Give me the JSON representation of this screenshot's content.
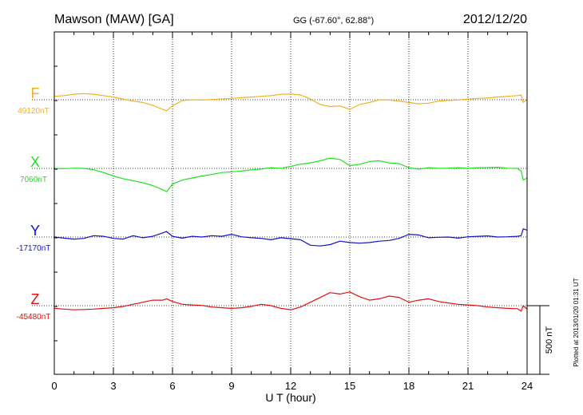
{
  "chart_data": {
    "type": "line",
    "title": "Mawson (MAW)  [GA]",
    "subtitle": "GG (-67.60°,  62.88°)",
    "date": "2012/12/20",
    "xlabel": "U T (hour)",
    "x_ticks": [
      "0",
      "3",
      "6",
      "9",
      "12",
      "15",
      "18",
      "21",
      "24"
    ],
    "xlim": [
      0,
      24
    ],
    "scale_label": "500 nT",
    "scale_nT": 500,
    "footer": "Plotted at 2013/01/20 01:31  UT",
    "grid": "dotted",
    "series": [
      {
        "name": "F",
        "baseline_label": "49120nT",
        "baseline_nT": 49120,
        "color": "#f0b020",
        "x": [
          0,
          0.5,
          1,
          1.5,
          2,
          2.5,
          3,
          3.5,
          4,
          4.5,
          5,
          5.5,
          5.7,
          6,
          6.5,
          7,
          7.5,
          8,
          8.5,
          9,
          9.5,
          10,
          10.5,
          11,
          11.5,
          12,
          12.5,
          13,
          13.5,
          14,
          14.5,
          15,
          15.5,
          16,
          16.5,
          17,
          17.5,
          18,
          18.5,
          19,
          19.5,
          20,
          20.5,
          21,
          21.5,
          22,
          22.5,
          23,
          23.5,
          23.7,
          23.8,
          24
        ],
        "y": [
          49145,
          49150,
          49160,
          49165,
          49160,
          49150,
          49140,
          49125,
          49110,
          49100,
          49080,
          49050,
          49040,
          49075,
          49115,
          49120,
          49118,
          49122,
          49125,
          49130,
          49135,
          49140,
          49145,
          49150,
          49160,
          49162,
          49155,
          49125,
          49085,
          49070,
          49075,
          49050,
          49085,
          49100,
          49120,
          49118,
          49110,
          49100,
          49090,
          49095,
          49110,
          49115,
          49118,
          49125,
          49130,
          49132,
          49140,
          49145,
          49150,
          49155,
          49100,
          49120
        ]
      },
      {
        "name": "X",
        "baseline_label": "7060nT",
        "baseline_nT": 7060,
        "color": "#20e020",
        "x": [
          0,
          0.5,
          1,
          1.5,
          2,
          2.5,
          3,
          3.5,
          4,
          4.5,
          5,
          5.5,
          5.7,
          6,
          6.5,
          7,
          7.5,
          8,
          8.5,
          9,
          9.5,
          10,
          10.5,
          11,
          11.5,
          12,
          12.5,
          13,
          13.5,
          14,
          14.5,
          15,
          15.5,
          16,
          16.5,
          17,
          17.5,
          18,
          18.5,
          19,
          19.5,
          20,
          20.5,
          21,
          21.5,
          22,
          22.5,
          23,
          23.5,
          23.7,
          23.8,
          24
        ],
        "y": [
          7060,
          7058,
          7062,
          7060,
          7050,
          7030,
          7005,
          6985,
          6970,
          6955,
          6935,
          6905,
          6890,
          6945,
          6975,
          6990,
          7005,
          7015,
          7030,
          7035,
          7040,
          7050,
          7055,
          7065,
          7060,
          7075,
          7090,
          7100,
          7115,
          7135,
          7125,
          7080,
          7090,
          7110,
          7115,
          7100,
          7095,
          7065,
          7055,
          7065,
          7060,
          7062,
          7065,
          7060,
          7065,
          7066,
          7068,
          7062,
          7060,
          7040,
          6975,
          6990
        ]
      },
      {
        "name": "Y",
        "baseline_label": "-17170nT",
        "baseline_nT": -17170,
        "color": "#1010d0",
        "x": [
          0,
          0.5,
          1,
          1.5,
          2,
          2.5,
          3,
          3.5,
          4,
          4.5,
          5,
          5.5,
          5.7,
          6,
          6.5,
          7,
          7.5,
          8,
          8.5,
          9,
          9.5,
          10,
          10.5,
          11,
          11.5,
          12,
          12.5,
          13,
          13.5,
          14,
          14.5,
          15,
          15.5,
          16,
          16.5,
          17,
          17.5,
          18,
          18.5,
          19,
          19.5,
          20,
          20.5,
          21,
          21.5,
          22,
          22.5,
          23,
          23.5,
          23.7,
          23.8,
          24
        ],
        "y": [
          -17170,
          -17178,
          -17185,
          -17180,
          -17160,
          -17165,
          -17180,
          -17185,
          -17160,
          -17175,
          -17165,
          -17140,
          -17130,
          -17165,
          -17178,
          -17165,
          -17170,
          -17160,
          -17165,
          -17150,
          -17168,
          -17175,
          -17180,
          -17190,
          -17175,
          -17182,
          -17190,
          -17230,
          -17235,
          -17225,
          -17200,
          -17210,
          -17215,
          -17210,
          -17200,
          -17195,
          -17180,
          -17150,
          -17155,
          -17175,
          -17172,
          -17170,
          -17178,
          -17168,
          -17165,
          -17162,
          -17170,
          -17168,
          -17165,
          -17160,
          -17110,
          -17120
        ]
      },
      {
        "name": "Z",
        "baseline_label": "-45480nT",
        "baseline_nT": -45480,
        "color": "#e01010",
        "x": [
          0,
          0.5,
          1,
          1.5,
          2,
          2.5,
          3,
          3.5,
          4,
          4.5,
          5,
          5.5,
          5.7,
          6,
          6.5,
          7,
          7.5,
          8,
          8.5,
          9,
          9.5,
          10,
          10.5,
          11,
          11.5,
          12,
          12.5,
          13,
          13.5,
          14,
          14.5,
          15,
          15.5,
          16,
          16.5,
          17,
          17.5,
          18,
          18.5,
          19,
          19.5,
          20,
          20.5,
          21,
          21.5,
          22,
          22.5,
          23,
          23.5,
          23.7,
          23.8,
          24
        ],
        "y": [
          -45500,
          -45505,
          -45510,
          -45508,
          -45505,
          -45500,
          -45495,
          -45485,
          -45470,
          -45455,
          -45440,
          -45440,
          -45430,
          -45450,
          -45470,
          -45475,
          -45478,
          -45490,
          -45495,
          -45500,
          -45495,
          -45485,
          -45470,
          -45480,
          -45500,
          -45510,
          -45490,
          -45455,
          -45420,
          -45385,
          -45395,
          -45380,
          -45415,
          -45440,
          -45430,
          -45410,
          -45420,
          -45455,
          -45440,
          -45430,
          -45450,
          -45460,
          -45470,
          -45475,
          -45480,
          -45490,
          -45495,
          -45500,
          -45502,
          -45520,
          -45480,
          -45505
        ]
      }
    ]
  }
}
